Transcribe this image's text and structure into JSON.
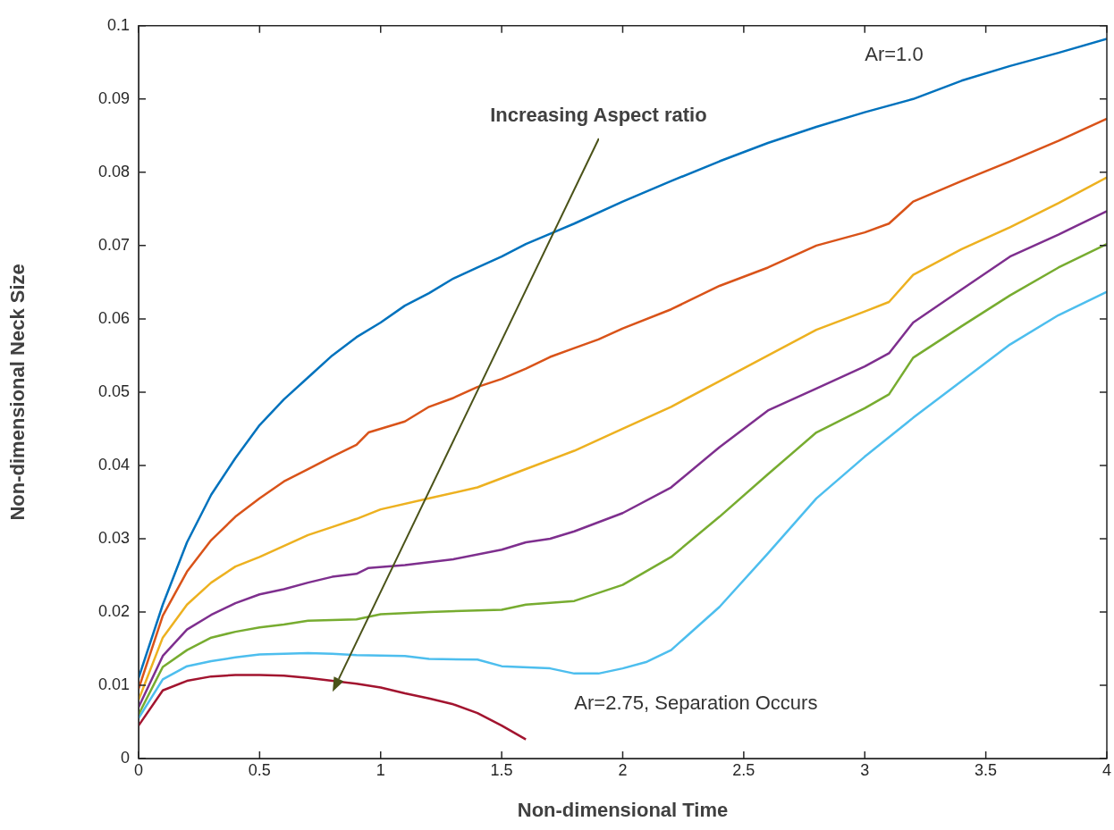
{
  "chart_data": {
    "type": "line",
    "xlabel": "Non-dimensional Time",
    "ylabel": "Non-dimensional Neck Size",
    "xlim": [
      0,
      4
    ],
    "xticks": [
      0,
      0.5,
      1,
      1.5,
      2,
      2.5,
      3,
      3.5,
      4
    ],
    "ylim": [
      0,
      0.1
    ],
    "yticks": [
      0,
      0.01,
      0.02,
      0.03,
      0.04,
      0.05,
      0.06,
      0.07,
      0.08,
      0.09,
      0.1
    ],
    "grid": false,
    "legend": false,
    "marker": "none",
    "line_style": "solid",
    "series": [
      {
        "color": "#0072bd",
        "x": [
          0,
          0.1,
          0.2,
          0.3,
          0.4,
          0.5,
          0.6,
          0.7,
          0.8,
          0.9,
          1,
          1.1,
          1.2,
          1.3,
          1.4,
          1.5,
          1.6,
          1.8,
          2,
          2.2,
          2.4,
          2.6,
          2.8,
          3,
          3.2,
          3.4,
          3.6,
          3.8,
          4
        ],
        "values": [
          0.011,
          0.021,
          0.0295,
          0.036,
          0.041,
          0.0455,
          0.049,
          0.052,
          0.055,
          0.0575,
          0.0595,
          0.0618,
          0.0635,
          0.0655,
          0.067,
          0.0685,
          0.0702,
          0.073,
          0.076,
          0.0788,
          0.0815,
          0.084,
          0.0862,
          0.0882,
          0.09,
          0.0925,
          0.0945,
          0.0963,
          0.0982
        ]
      },
      {
        "color": "#d95319",
        "x": [
          0,
          0.1,
          0.2,
          0.3,
          0.4,
          0.5,
          0.6,
          0.7,
          0.8,
          0.9,
          0.95,
          1.1,
          1.2,
          1.3,
          1.4,
          1.5,
          1.6,
          1.7,
          1.8,
          1.9,
          2,
          2.2,
          2.4,
          2.6,
          2.8,
          3,
          3.1,
          3.2,
          3.4,
          3.6,
          3.8,
          4
        ],
        "values": [
          0.0095,
          0.0195,
          0.0255,
          0.0298,
          0.033,
          0.0355,
          0.0378,
          0.0395,
          0.0412,
          0.0428,
          0.0445,
          0.046,
          0.048,
          0.0492,
          0.0507,
          0.0518,
          0.0532,
          0.0548,
          0.056,
          0.0572,
          0.0587,
          0.0613,
          0.0645,
          0.067,
          0.07,
          0.0718,
          0.073,
          0.076,
          0.0788,
          0.0815,
          0.0843,
          0.0873
        ]
      },
      {
        "color": "#edb120",
        "x": [
          0,
          0.1,
          0.2,
          0.3,
          0.4,
          0.5,
          0.6,
          0.7,
          0.8,
          0.9,
          1,
          1.2,
          1.4,
          1.6,
          1.8,
          2,
          2.2,
          2.4,
          2.6,
          2.8,
          3,
          3.1,
          3.2,
          3.4,
          3.6,
          3.8,
          4
        ],
        "values": [
          0.008,
          0.0165,
          0.021,
          0.024,
          0.0262,
          0.0275,
          0.029,
          0.0305,
          0.0316,
          0.0327,
          0.034,
          0.0355,
          0.037,
          0.0395,
          0.042,
          0.045,
          0.048,
          0.0515,
          0.055,
          0.0585,
          0.061,
          0.0623,
          0.066,
          0.0695,
          0.0725,
          0.0758,
          0.0793
        ]
      },
      {
        "color": "#7e2f8e",
        "x": [
          0,
          0.1,
          0.2,
          0.3,
          0.4,
          0.5,
          0.6,
          0.7,
          0.8,
          0.9,
          0.95,
          1.1,
          1.3,
          1.5,
          1.6,
          1.7,
          1.8,
          2,
          2.2,
          2.4,
          2.6,
          2.8,
          3,
          3.1,
          3.2,
          3.4,
          3.6,
          3.8,
          4
        ],
        "values": [
          0.007,
          0.014,
          0.0176,
          0.0196,
          0.0212,
          0.0224,
          0.0231,
          0.024,
          0.0248,
          0.0252,
          0.026,
          0.0264,
          0.0272,
          0.0285,
          0.0295,
          0.03,
          0.031,
          0.0335,
          0.037,
          0.0425,
          0.0475,
          0.0505,
          0.0535,
          0.0553,
          0.0595,
          0.064,
          0.0685,
          0.0715,
          0.0747
        ]
      },
      {
        "color": "#77ac30",
        "x": [
          0,
          0.1,
          0.2,
          0.3,
          0.4,
          0.5,
          0.6,
          0.7,
          0.9,
          1,
          1.2,
          1.5,
          1.6,
          1.8,
          2,
          2.2,
          2.4,
          2.6,
          2.8,
          3,
          3.1,
          3.2,
          3.4,
          3.6,
          3.8,
          4
        ],
        "values": [
          0.006,
          0.0125,
          0.0148,
          0.0165,
          0.0173,
          0.0179,
          0.0183,
          0.0188,
          0.019,
          0.0197,
          0.02,
          0.0203,
          0.021,
          0.0215,
          0.0237,
          0.0275,
          0.033,
          0.0388,
          0.0445,
          0.0478,
          0.0497,
          0.0547,
          0.059,
          0.0632,
          0.067,
          0.0702
        ]
      },
      {
        "color": "#4dbeee",
        "x": [
          0,
          0.1,
          0.2,
          0.3,
          0.4,
          0.5,
          0.7,
          0.8,
          0.9,
          1.1,
          1.2,
          1.4,
          1.5,
          1.7,
          1.8,
          1.9,
          2,
          2.1,
          2.2,
          2.4,
          2.6,
          2.8,
          3,
          3.2,
          3.4,
          3.6,
          3.8,
          4
        ],
        "values": [
          0.0055,
          0.0108,
          0.0126,
          0.0133,
          0.0138,
          0.0142,
          0.0144,
          0.0143,
          0.0141,
          0.014,
          0.0136,
          0.0135,
          0.0126,
          0.0123,
          0.0116,
          0.0116,
          0.0123,
          0.0132,
          0.0148,
          0.0207,
          0.028,
          0.0355,
          0.0412,
          0.0465,
          0.0515,
          0.0565,
          0.0605,
          0.0637
        ]
      },
      {
        "color": "#a2142f",
        "x": [
          0,
          0.1,
          0.2,
          0.3,
          0.4,
          0.5,
          0.6,
          0.7,
          0.8,
          0.9,
          1,
          1.1,
          1.2,
          1.3,
          1.4,
          1.5,
          1.6
        ],
        "values": [
          0.0045,
          0.0093,
          0.0106,
          0.0112,
          0.0114,
          0.0114,
          0.0113,
          0.011,
          0.0106,
          0.0102,
          0.0097,
          0.0089,
          0.0082,
          0.0074,
          0.0062,
          0.0045,
          0.0026
        ]
      }
    ],
    "annotations": [
      "Ar=1.0",
      "Increasing Aspect ratio",
      "Ar=2.75, Separation Occurs"
    ]
  }
}
